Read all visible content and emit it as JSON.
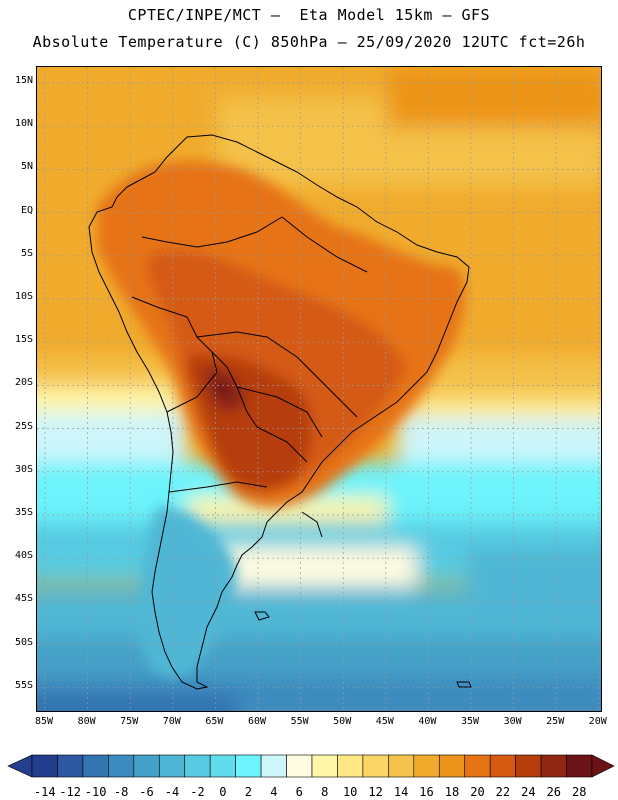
{
  "title_line1": "CPTEC/INPE/MCT –  Eta Model 15km – GFS",
  "title_line2": "Absolute Temperature (C) 850hPa – 25/09/2020 12UTC fct=26h",
  "lat_labels": [
    "15N",
    "10N",
    "5N",
    "EQ",
    "5S",
    "10S",
    "15S",
    "20S",
    "25S",
    "30S",
    "35S",
    "40S",
    "45S",
    "50S",
    "55S"
  ],
  "lon_labels": [
    "85W",
    "80W",
    "75W",
    "70W",
    "65W",
    "60W",
    "55W",
    "50W",
    "45W",
    "40W",
    "35W",
    "30W",
    "25W",
    "20W"
  ],
  "colorbar": {
    "labels": [
      "-14",
      "-12",
      "-10",
      "-8",
      "-6",
      "-4",
      "-2",
      "0",
      "2",
      "4",
      "6",
      "8",
      "10",
      "12",
      "14",
      "16",
      "18",
      "20",
      "22",
      "24",
      "26",
      "28"
    ],
    "colors": [
      "#233e8c",
      "#2d58a0",
      "#3375b1",
      "#3c8bbf",
      "#45a1c8",
      "#4fb7d5",
      "#56cbe2",
      "#5fdded",
      "#6cf3fb",
      "#cdf5fa",
      "#fffbe0",
      "#fff6a6",
      "#ffe884",
      "#f9d666",
      "#f4c14a",
      "#f0ab2d",
      "#ec9419",
      "#e67316",
      "#d45a12",
      "#b63e0d",
      "#8f2812",
      "#6b1317"
    ],
    "low_arrow_color": "#233e8c",
    "high_arrow_color": "#6b1317"
  },
  "map": {
    "land_outline_color": "#000000",
    "grid_color": "#9a9a9a"
  }
}
